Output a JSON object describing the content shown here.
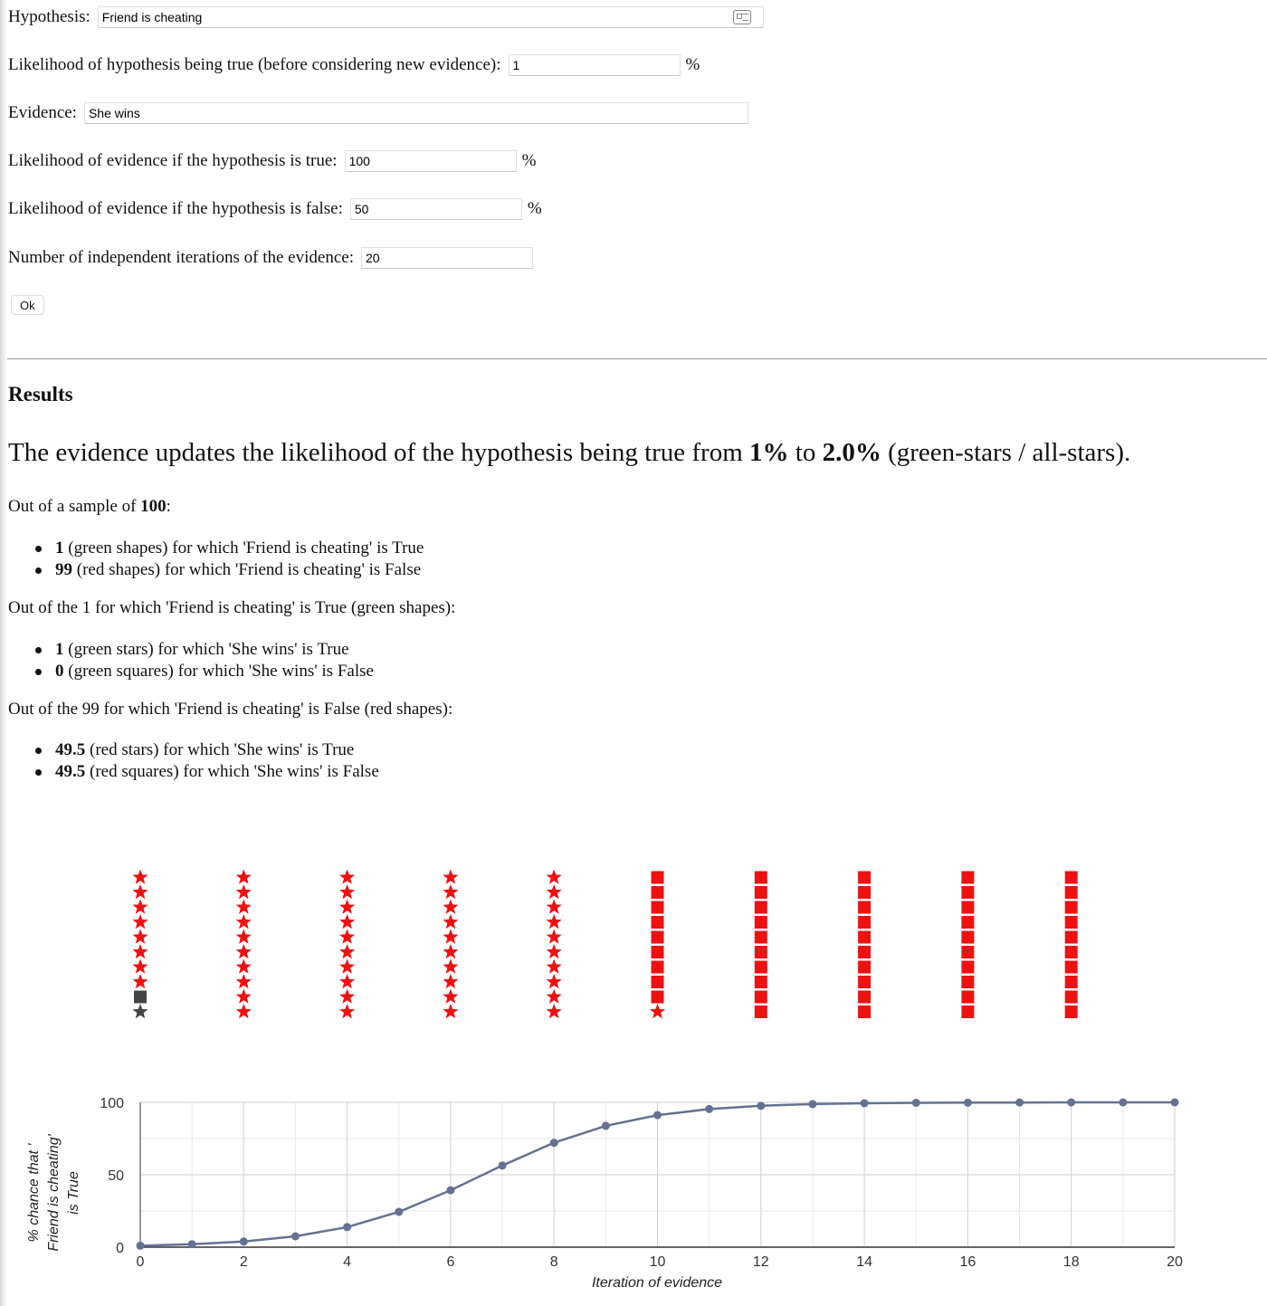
{
  "form": {
    "hypothesis_label": "Hypothesis:",
    "hypothesis_value": "Friend is cheating",
    "prior_label": "Likelihood of hypothesis being true (before considering new evidence):",
    "prior_value": "1",
    "evidence_label": "Evidence:",
    "evidence_value": "She wins",
    "true_label": "Likelihood of evidence if the hypothesis is true:",
    "true_value": "100",
    "false_label": "Likelihood of evidence if the hypothesis is false:",
    "false_value": "50",
    "iterations_label": "Number of independent iterations of the evidence:",
    "iterations_value": "20",
    "percent_sign": "%",
    "ok_label": "Ok",
    "card_icon": "contact-card-icon"
  },
  "results": {
    "heading": "Results",
    "summary_prefix": "The evidence updates the likelihood of the hypothesis being true from ",
    "prior": "1%",
    "summary_mid": " to ",
    "posterior": "2.0%",
    "summary_suffix": " (green-stars / all-stars).",
    "sample_prefix": "Out of a sample of ",
    "sample_size": "100",
    "sample_suffix": ":",
    "sample_items": [
      {
        "num": "1",
        "text": " (green shapes) for which 'Friend is cheating' is True"
      },
      {
        "num": "99",
        "text": " (red shapes) for which 'Friend is cheating' is False"
      }
    ],
    "true_group_heading": "Out of the 1 for which 'Friend is cheating' is True (green shapes):",
    "true_items": [
      {
        "num": "1",
        "text": " (green stars) for which 'She wins' is True"
      },
      {
        "num": "0",
        "text": " (green squares) for which 'She wins' is False"
      }
    ],
    "false_group_heading": "Out of the 99 for which 'Friend is cheating' is False (red shapes):",
    "false_items": [
      {
        "num": "49.5",
        "text": " (red stars) for which 'She wins' is True"
      },
      {
        "num": "49.5",
        "text": " (red squares) for which 'She wins' is False"
      }
    ]
  },
  "shape_grid": {
    "columns": 10,
    "per_column": 10,
    "fill_order": "bottom-to-top",
    "shapes": [
      "dark-star",
      "dark-square",
      "red-star",
      "red-star",
      "red-star",
      "red-star",
      "red-star",
      "red-star",
      "red-star",
      "red-star",
      "red-star",
      "red-star",
      "red-star",
      "red-star",
      "red-star",
      "red-star",
      "red-star",
      "red-star",
      "red-star",
      "red-star",
      "red-star",
      "red-star",
      "red-star",
      "red-star",
      "red-star",
      "red-star",
      "red-star",
      "red-star",
      "red-star",
      "red-star",
      "red-star",
      "red-star",
      "red-star",
      "red-star",
      "red-star",
      "red-star",
      "red-star",
      "red-star",
      "red-star",
      "red-star",
      "red-star",
      "red-star",
      "red-star",
      "red-star",
      "red-star",
      "red-star",
      "red-star",
      "red-star",
      "red-star",
      "red-star",
      "red-star",
      "red-square",
      "red-square",
      "red-square",
      "red-square",
      "red-square",
      "red-square",
      "red-square",
      "red-square",
      "red-square",
      "red-square",
      "red-square",
      "red-square",
      "red-square",
      "red-square",
      "red-square",
      "red-square",
      "red-square",
      "red-square",
      "red-square",
      "red-square",
      "red-square",
      "red-square",
      "red-square",
      "red-square",
      "red-square",
      "red-square",
      "red-square",
      "red-square",
      "red-square",
      "red-square",
      "red-square",
      "red-square",
      "red-square",
      "red-square",
      "red-square",
      "red-square",
      "red-square",
      "red-square",
      "red-square",
      "red-square",
      "red-square",
      "red-square",
      "red-square",
      "red-square",
      "red-square",
      "red-square",
      "red-square",
      "red-square",
      "red-square"
    ],
    "colors": {
      "red": "#ee1111",
      "dark": "#444444"
    }
  },
  "chart_data": {
    "type": "line",
    "title": "",
    "xlabel": "Iteration of evidence",
    "ylabel": [
      "% chance that '",
      "Friend is cheating'",
      "is True"
    ],
    "x": [
      0,
      1,
      2,
      3,
      4,
      5,
      6,
      7,
      8,
      9,
      10,
      11,
      12,
      13,
      14,
      15,
      16,
      17,
      18,
      19,
      20
    ],
    "series": [
      {
        "values": [
          1,
          2.0,
          3.9,
          7.5,
          13.9,
          24.4,
          39.3,
          56.4,
          72.1,
          83.8,
          91.2,
          95.4,
          97.6,
          98.8,
          99.4,
          99.7,
          99.8,
          99.9,
          100,
          100,
          100
        ]
      }
    ],
    "xlim": [
      0,
      20
    ],
    "ylim": [
      0,
      100
    ],
    "xticks": [
      0,
      2,
      4,
      6,
      8,
      10,
      12,
      14,
      16,
      18,
      20
    ],
    "yticks": [
      0,
      50,
      100
    ],
    "grid": true,
    "line_color": "#647192"
  }
}
